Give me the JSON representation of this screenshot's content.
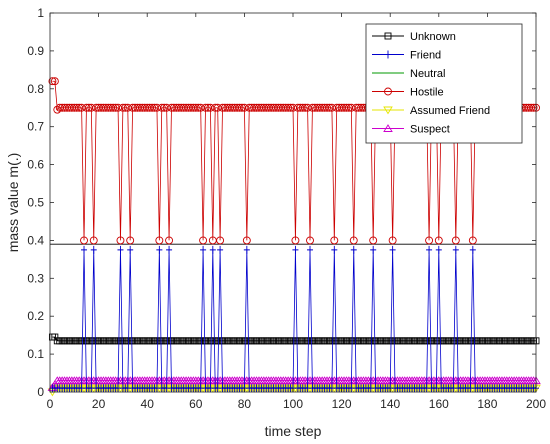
{
  "chart_data": {
    "type": "line",
    "title": "",
    "xlabel": "time step",
    "ylabel": "mass value m(.)",
    "xlim": [
      0,
      200
    ],
    "ylim": [
      0,
      1
    ],
    "xticks": [
      0,
      20,
      40,
      60,
      80,
      100,
      120,
      140,
      160,
      180,
      200
    ],
    "yticks": [
      0,
      0.1,
      0.2,
      0.3,
      0.4,
      0.5,
      0.6,
      0.7,
      0.8,
      0.9,
      1
    ],
    "grid": false,
    "legend_position": "top-right",
    "dip_steps": [
      14,
      18,
      29,
      33,
      45,
      49,
      63,
      67,
      70,
      81,
      101,
      107,
      117,
      125,
      133,
      141,
      156,
      160,
      167,
      174
    ],
    "series": [
      {
        "name": "Unknown",
        "color": "#000000",
        "marker": "square",
        "points": [
          [
            1,
            0.145
          ],
          [
            2,
            0.145
          ],
          [
            3,
            0.135
          ],
          [
            200,
            0.135
          ]
        ],
        "dip_value": 0.135
      },
      {
        "name": "Friend",
        "color": "#0000cc",
        "marker": "plus",
        "points": [
          [
            1,
            0.01
          ],
          [
            200,
            0.01
          ]
        ],
        "dip_value": 0.375
      },
      {
        "name": "Neutral",
        "color": "#009900",
        "marker": "none",
        "points": [
          [
            1,
            0.013
          ],
          [
            200,
            0.013
          ]
        ]
      },
      {
        "name": "Hostile",
        "color": "#cc0000",
        "marker": "circle",
        "points": [
          [
            1,
            0.82
          ],
          [
            2,
            0.82
          ],
          [
            3,
            0.745
          ],
          [
            4,
            0.75
          ],
          [
            200,
            0.75
          ]
        ],
        "dip_value": 0.4
      },
      {
        "name": "Assumed Friend",
        "color": "#e6e600",
        "marker": "triangle-down",
        "points": [
          [
            1,
            0.0
          ],
          [
            2,
            0.01
          ],
          [
            3,
            0.01
          ],
          [
            200,
            0.01
          ]
        ]
      },
      {
        "name": "Suspect",
        "color": "#cc00cc",
        "marker": "triangle-up",
        "points": [
          [
            1,
            0.012
          ],
          [
            2,
            0.02
          ],
          [
            3,
            0.03
          ],
          [
            200,
            0.03
          ]
        ]
      }
    ],
    "reference_line": {
      "y": 0.39,
      "color": "#000000"
    }
  }
}
